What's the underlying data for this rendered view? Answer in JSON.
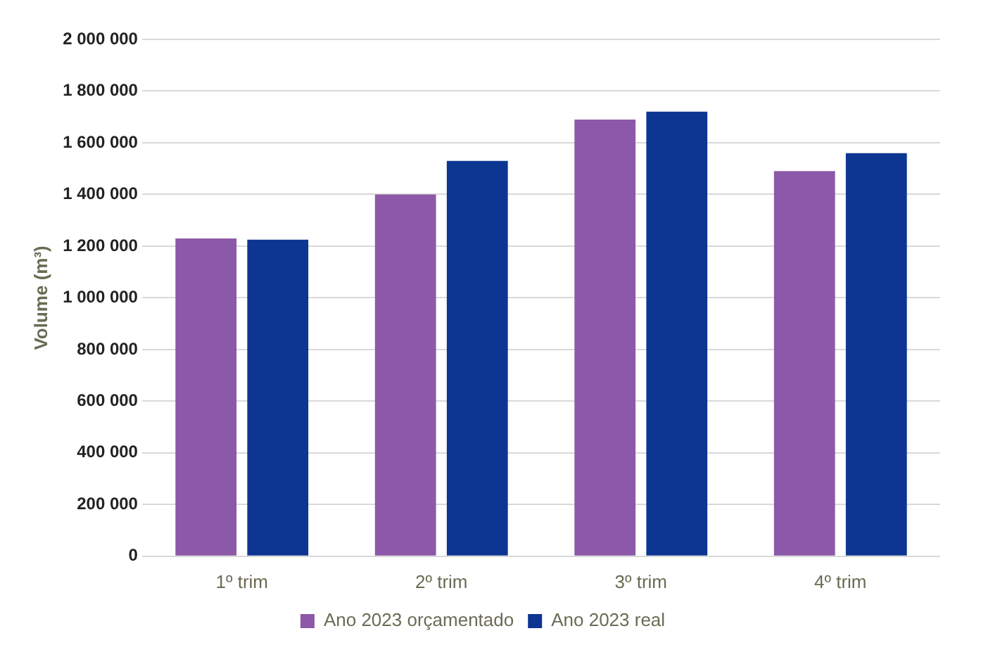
{
  "chart_data": {
    "type": "bar",
    "ylabel": "Volume (m³)",
    "categories": [
      "1º trim",
      "2º trim",
      "3º trim",
      "4º trim"
    ],
    "series": [
      {
        "name": "Ano 2023 orçamentado",
        "color": "#8c58a8",
        "values": [
          1230000,
          1400000,
          1690000,
          1490000
        ]
      },
      {
        "name": "Ano 2023 real",
        "color": "#0d3592",
        "values": [
          1225000,
          1530000,
          1720000,
          1560000
        ]
      }
    ],
    "ylim": [
      0,
      2000000
    ],
    "yticks": [
      {
        "value": 0,
        "label": "0"
      },
      {
        "value": 200000,
        "label": "200 000"
      },
      {
        "value": 400000,
        "label": "400 000"
      },
      {
        "value": 600000,
        "label": "600 000"
      },
      {
        "value": 800000,
        "label": "800 000"
      },
      {
        "value": 1000000,
        "label": "1 000 000"
      },
      {
        "value": 1200000,
        "label": "1 200 000"
      },
      {
        "value": 1400000,
        "label": "1 400 000"
      },
      {
        "value": 1600000,
        "label": "1 600 000"
      },
      {
        "value": 1800000,
        "label": "1 800 000"
      },
      {
        "value": 2000000,
        "label": "2 000 000"
      }
    ],
    "grid": "y",
    "legend": "bottom"
  }
}
